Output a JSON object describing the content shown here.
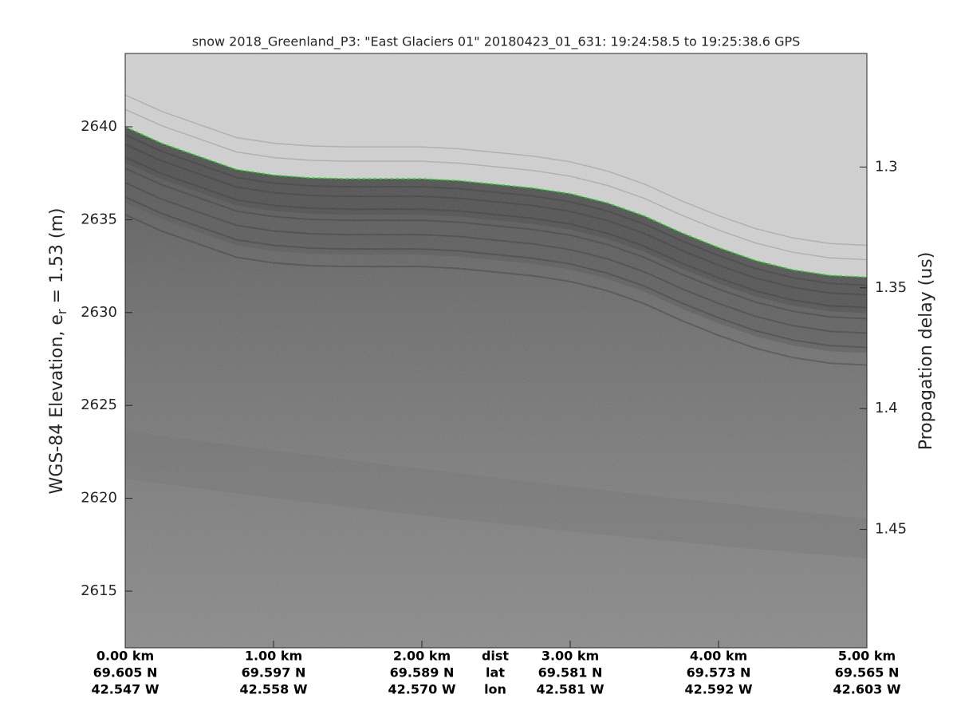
{
  "chart_data": {
    "type": "echogram",
    "title": "snow 2018_Greenland_P3: \"East Glaciers 01\"  20180423_01_631: 19:24:58.5 to 19:25:38.6 GPS",
    "ylabel": [
      "WGS-84 Elevation, e",
      "r",
      " = 1.53 (m)"
    ],
    "y2label": "Propagation delay (us)",
    "xlim": [
      0,
      5
    ],
    "xticks": [
      {
        "value": 0,
        "label": "0.00 km"
      },
      {
        "value": 1,
        "label": "1.00 km"
      },
      {
        "value": 2,
        "label": "2.00 km"
      },
      {
        "value": 3,
        "label": "3.00 km"
      },
      {
        "value": 4,
        "label": "4.00 km"
      },
      {
        "value": 5,
        "label": "5.00 km"
      }
    ],
    "x_lat": [
      "69.605 N",
      "69.597 N",
      "69.589 N",
      "69.581 N",
      "69.573 N",
      "69.565 N"
    ],
    "x_lon": [
      "42.547 W",
      "42.558 W",
      "42.570 W",
      "42.581 W",
      "42.592 W",
      "42.603 W"
    ],
    "x_row_labels": [
      "dist",
      "lat",
      "lon"
    ],
    "ylim": [
      2611.95,
      2643.95
    ],
    "yticks": [
      2615,
      2620,
      2625,
      2630,
      2635,
      2640
    ],
    "y2lim": [
      1.253,
      1.499
    ],
    "y2reverse": true,
    "y2ticks": [
      1.3,
      1.35,
      1.4,
      1.45
    ],
    "x": [
      0,
      0.25,
      0.5,
      0.75,
      1,
      1.25,
      1.5,
      1.75,
      2,
      2.25,
      2.5,
      2.75,
      3,
      3.25,
      3.5,
      3.75,
      4,
      4.25,
      4.5,
      4.75,
      5
    ],
    "series": [
      {
        "color": "#22dd22",
        "values": [
          2640.0,
          2639.1,
          2638.4,
          2637.7,
          2637.4,
          2637.25,
          2637.2,
          2637.2,
          2637.2,
          2637.1,
          2636.9,
          2636.7,
          2636.4,
          2635.9,
          2635.2,
          2634.3,
          2633.5,
          2632.8,
          2632.3,
          2632.0,
          2631.9
        ]
      }
    ]
  }
}
